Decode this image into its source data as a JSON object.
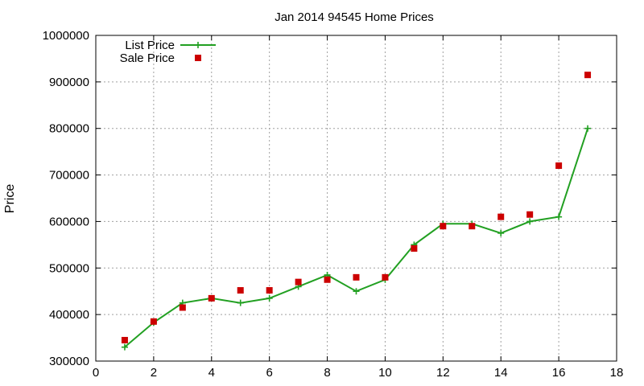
{
  "chart_data": {
    "type": "line",
    "title": "Jan 2014 94545 Home Prices",
    "xlabel": "",
    "ylabel": "Price",
    "xlim": [
      0,
      18
    ],
    "ylim": [
      300000,
      1000000
    ],
    "xticks": [
      0,
      2,
      4,
      6,
      8,
      10,
      12,
      14,
      16,
      18
    ],
    "yticks": [
      300000,
      400000,
      500000,
      600000,
      700000,
      800000,
      900000,
      1000000
    ],
    "grid": true,
    "legend_position": "top-left",
    "series": [
      {
        "name": "List Price",
        "style": "line-plus",
        "color": "#22a022",
        "x": [
          1,
          2,
          3,
          4,
          5,
          6,
          7,
          8,
          9,
          10,
          11,
          12,
          13,
          14,
          15,
          16,
          17
        ],
        "y": [
          330000,
          383000,
          425000,
          435000,
          425000,
          435000,
          460000,
          485000,
          450000,
          475000,
          550000,
          595000,
          595000,
          575000,
          600000,
          610000,
          800000
        ]
      },
      {
        "name": "Sale Price",
        "style": "square-points",
        "color": "#cc0000",
        "x": [
          1,
          2,
          3,
          4,
          5,
          6,
          7,
          8,
          9,
          10,
          11,
          12,
          13,
          14,
          15,
          16,
          17
        ],
        "y": [
          345000,
          385000,
          415000,
          435000,
          452000,
          452000,
          470000,
          475000,
          480000,
          480000,
          542000,
          590000,
          590000,
          610000,
          615000,
          720000,
          915000
        ]
      }
    ]
  }
}
